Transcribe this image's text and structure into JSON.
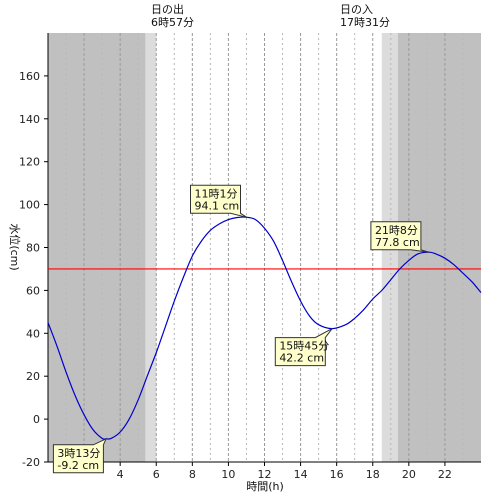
{
  "chart_data": {
    "type": "line",
    "xlabel": "時間(h)",
    "ylabel": "水位(cm)",
    "xlim": [
      0,
      24
    ],
    "ylim": [
      -20,
      180
    ],
    "x_ticks": [
      4,
      6,
      8,
      10,
      12,
      14,
      16,
      18,
      20,
      22
    ],
    "y_ticks": [
      -20,
      0,
      20,
      40,
      60,
      80,
      100,
      120,
      140,
      160
    ],
    "grid": "vertical dashed every hour",
    "sunrise": {
      "label": "日の出",
      "time_label": "6時57分",
      "hour": 6.95
    },
    "sunset": {
      "label": "日の入",
      "time_label": "17時31分",
      "hour": 17.52
    },
    "night_shading": {
      "dark_end": 5.4,
      "twilight_end": 6.0,
      "twilight_start": 18.5,
      "dark_start": 19.4
    },
    "reference_line": {
      "value": 70,
      "color": "#ff0000"
    },
    "line_color": "#0000cc",
    "series": [
      {
        "x": [
          0,
          0.5,
          1,
          1.5,
          2,
          2.5,
          3,
          3.22,
          3.5,
          4,
          4.5,
          5,
          5.5,
          6,
          6.5,
          7,
          7.5,
          8,
          8.5,
          9,
          9.5,
          10,
          10.5,
          11.02,
          11.5,
          12,
          12.5,
          13,
          13.5,
          14,
          14.5,
          15,
          15.75,
          16.5,
          17,
          17.5,
          18,
          18.5,
          19,
          19.5,
          20,
          20.5,
          21.13,
          21.5,
          22,
          22.5,
          23,
          23.5,
          24
        ],
        "y": [
          45,
          34,
          22,
          11,
          2,
          -5,
          -9,
          -9.2,
          -9,
          -6,
          0,
          9,
          20,
          31,
          43,
          55,
          66,
          76,
          83,
          88,
          91,
          93,
          94,
          94.1,
          93,
          89,
          83,
          74,
          64,
          55,
          48,
          44,
          42.2,
          44,
          47,
          51,
          56,
          60,
          65,
          70,
          74,
          77,
          77.8,
          77,
          75,
          72,
          68,
          64,
          59
        ]
      }
    ],
    "annotations": [
      {
        "time": "3時13分",
        "value": "-9.2 cm",
        "x": 3.22,
        "y": -9.2,
        "box_x": 0.3,
        "box_y": -12,
        "anchor": "top-right"
      },
      {
        "time": "11時1分",
        "value": "94.1 cm",
        "x": 11.02,
        "y": 94.1,
        "box_x": 7.9,
        "box_y": 109,
        "anchor": "bottom-right"
      },
      {
        "time": "15時45分",
        "value": "42.2 cm",
        "x": 15.75,
        "y": 42.2,
        "box_x": 12.6,
        "box_y": 38,
        "anchor": "top-right"
      },
      {
        "time": "21時8分",
        "value": "77.8 cm",
        "x": 21.13,
        "y": 77.8,
        "box_x": 17.9,
        "box_y": 92,
        "anchor": "bottom-right"
      }
    ]
  }
}
